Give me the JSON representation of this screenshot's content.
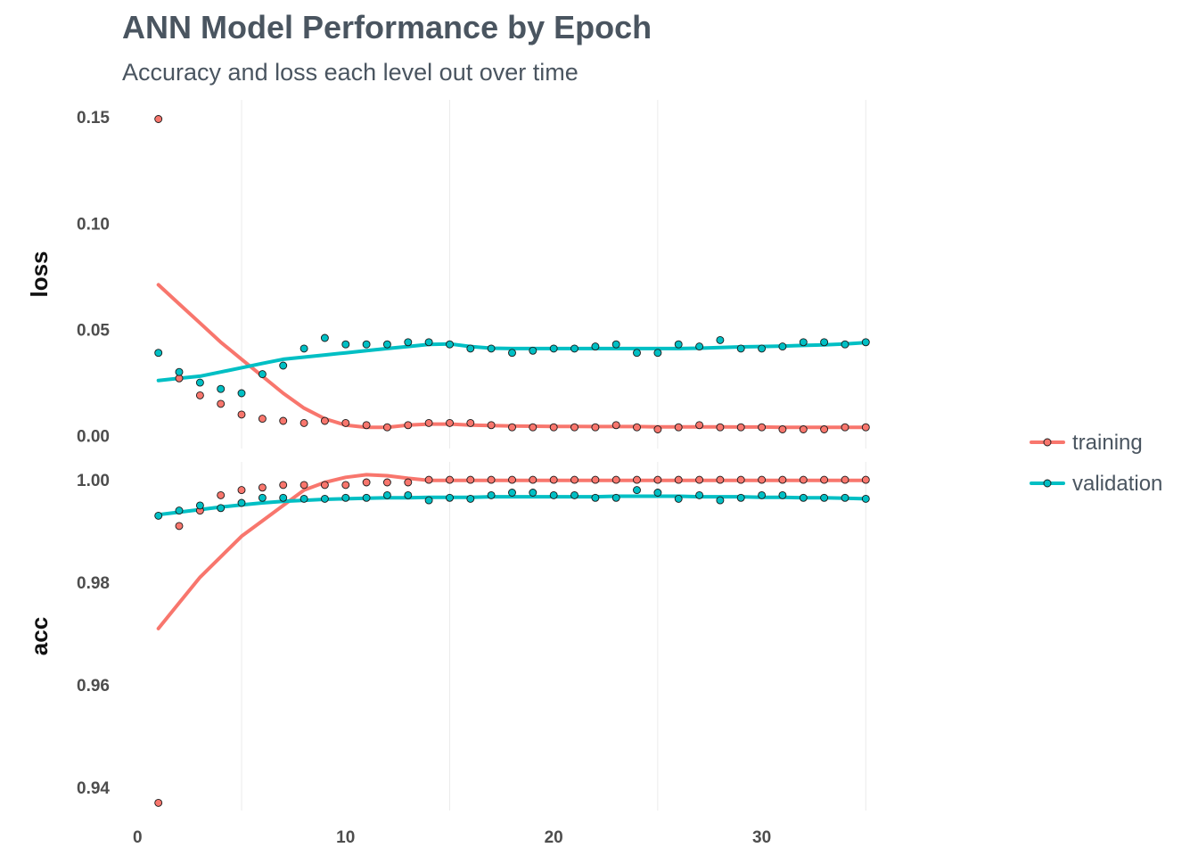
{
  "chart_data": {
    "type": "scatter",
    "title": "ANN Model Performance by Epoch",
    "subtitle": "Accuracy and loss each level out over time",
    "xlabel": "",
    "x_ticks": [
      0,
      10,
      20,
      30
    ],
    "xlim": [
      -1,
      40
    ],
    "legend": {
      "position": "right",
      "entries": [
        "training",
        "validation"
      ]
    },
    "colors": {
      "training": "#F8766D",
      "validation": "#00BFC4",
      "grid": "#ebebeb",
      "text": "#4d4d4d",
      "title": "#4a5560"
    },
    "grid": true,
    "facets": [
      {
        "name": "loss",
        "ylim": [
          -0.006,
          0.158
        ],
        "y_ticks": [
          0.0,
          0.05,
          0.1,
          0.15
        ],
        "series": [
          {
            "name": "training",
            "x": [
              1,
              2,
              3,
              4,
              5,
              6,
              7,
              8,
              9,
              10,
              11,
              12,
              13,
              14,
              15,
              16,
              17,
              18,
              19,
              20,
              21,
              22,
              23,
              24,
              25,
              26,
              27,
              28,
              29,
              30,
              31,
              32,
              33,
              34,
              35
            ],
            "values": [
              0.149,
              0.027,
              0.019,
              0.015,
              0.01,
              0.008,
              0.007,
              0.006,
              0.007,
              0.006,
              0.005,
              0.004,
              0.005,
              0.006,
              0.006,
              0.006,
              0.005,
              0.004,
              0.004,
              0.004,
              0.004,
              0.004,
              0.005,
              0.004,
              0.003,
              0.004,
              0.005,
              0.004,
              0.004,
              0.004,
              0.003,
              0.003,
              0.003,
              0.004,
              0.004
            ],
            "smooth": [
              0.071,
              0.062,
              0.053,
              0.044,
              0.036,
              0.028,
              0.02,
              0.013,
              0.008,
              0.005,
              0.004,
              0.004,
              0.005,
              0.0055,
              0.0055,
              0.005,
              0.0048,
              0.0046,
              0.0045,
              0.0044,
              0.0044,
              0.0043,
              0.0043,
              0.0043,
              0.0042,
              0.0042,
              0.0042,
              0.0042,
              0.0041,
              0.0041,
              0.004,
              0.004,
              0.004,
              0.004,
              0.004
            ]
          },
          {
            "name": "validation",
            "x": [
              1,
              2,
              3,
              4,
              5,
              6,
              7,
              8,
              9,
              10,
              11,
              12,
              13,
              14,
              15,
              16,
              17,
              18,
              19,
              20,
              21,
              22,
              23,
              24,
              25,
              26,
              27,
              28,
              29,
              30,
              31,
              32,
              33,
              34,
              35
            ],
            "values": [
              0.039,
              0.03,
              0.025,
              0.022,
              0.02,
              0.029,
              0.033,
              0.041,
              0.046,
              0.043,
              0.043,
              0.043,
              0.044,
              0.044,
              0.043,
              0.041,
              0.041,
              0.039,
              0.04,
              0.041,
              0.041,
              0.042,
              0.043,
              0.039,
              0.039,
              0.043,
              0.042,
              0.045,
              0.041,
              0.041,
              0.042,
              0.044,
              0.044,
              0.043,
              0.044
            ],
            "smooth": [
              0.026,
              0.027,
              0.028,
              0.03,
              0.032,
              0.034,
              0.036,
              0.037,
              0.038,
              0.039,
              0.04,
              0.041,
              0.042,
              0.043,
              0.0432,
              0.042,
              0.0412,
              0.041,
              0.041,
              0.041,
              0.041,
              0.041,
              0.041,
              0.041,
              0.041,
              0.041,
              0.0412,
              0.0415,
              0.0418,
              0.042,
              0.0422,
              0.0425,
              0.0428,
              0.0432,
              0.0438
            ]
          }
        ]
      },
      {
        "name": "acc",
        "ylim": [
          0.9355,
          1.0035
        ],
        "y_ticks": [
          0.94,
          0.96,
          0.98,
          1.0
        ],
        "series": [
          {
            "name": "training",
            "x": [
              1,
              2,
              3,
              4,
              5,
              6,
              7,
              8,
              9,
              10,
              11,
              12,
              13,
              14,
              15,
              16,
              17,
              18,
              19,
              20,
              21,
              22,
              23,
              24,
              25,
              26,
              27,
              28,
              29,
              30,
              31,
              32,
              33,
              34,
              35
            ],
            "values": [
              0.937,
              0.991,
              0.994,
              0.997,
              0.998,
              0.9985,
              0.999,
              0.999,
              0.999,
              0.999,
              0.9995,
              0.9995,
              0.9995,
              1.0,
              1.0,
              1.0,
              1.0,
              1.0,
              1.0,
              1.0,
              1.0,
              1.0,
              1.0,
              1.0,
              1.0,
              1.0,
              1.0,
              1.0,
              1.0,
              1.0,
              1.0,
              1.0,
              1.0,
              1.0,
              1.0
            ],
            "smooth": [
              0.971,
              0.976,
              0.981,
              0.985,
              0.989,
              0.992,
              0.995,
              0.998,
              0.9995,
              1.0005,
              1.001,
              1.0008,
              1.0003,
              0.9999,
              0.9999,
              0.9999,
              0.9999,
              0.9999,
              0.9999,
              0.9999,
              0.9999,
              0.9999,
              0.9999,
              0.9999,
              0.9999,
              0.9999,
              0.9999,
              0.9999,
              0.9999,
              0.9999,
              0.9999,
              0.9999,
              0.9999,
              0.9999,
              0.9999
            ]
          },
          {
            "name": "validation",
            "x": [
              1,
              2,
              3,
              4,
              5,
              6,
              7,
              8,
              9,
              10,
              11,
              12,
              13,
              14,
              15,
              16,
              17,
              18,
              19,
              20,
              21,
              22,
              23,
              24,
              25,
              26,
              27,
              28,
              29,
              30,
              31,
              32,
              33,
              34,
              35
            ],
            "values": [
              0.993,
              0.994,
              0.995,
              0.9945,
              0.9955,
              0.9965,
              0.9965,
              0.9963,
              0.9963,
              0.9965,
              0.9965,
              0.997,
              0.997,
              0.996,
              0.9965,
              0.9963,
              0.997,
              0.9975,
              0.9975,
              0.997,
              0.997,
              0.9965,
              0.9965,
              0.998,
              0.9975,
              0.9963,
              0.997,
              0.996,
              0.9965,
              0.997,
              0.997,
              0.9965,
              0.9965,
              0.9965,
              0.9963
            ],
            "smooth": [
              0.9932,
              0.9937,
              0.9942,
              0.9947,
              0.9951,
              0.9955,
              0.9958,
              0.996,
              0.9962,
              0.9963,
              0.9964,
              0.9965,
              0.9965,
              0.9966,
              0.9966,
              0.9966,
              0.9967,
              0.9967,
              0.9967,
              0.9967,
              0.9967,
              0.9967,
              0.9968,
              0.9968,
              0.9968,
              0.9968,
              0.9967,
              0.9967,
              0.9967,
              0.9966,
              0.9966,
              0.9965,
              0.9965,
              0.9964,
              0.9963
            ]
          }
        ]
      }
    ]
  }
}
